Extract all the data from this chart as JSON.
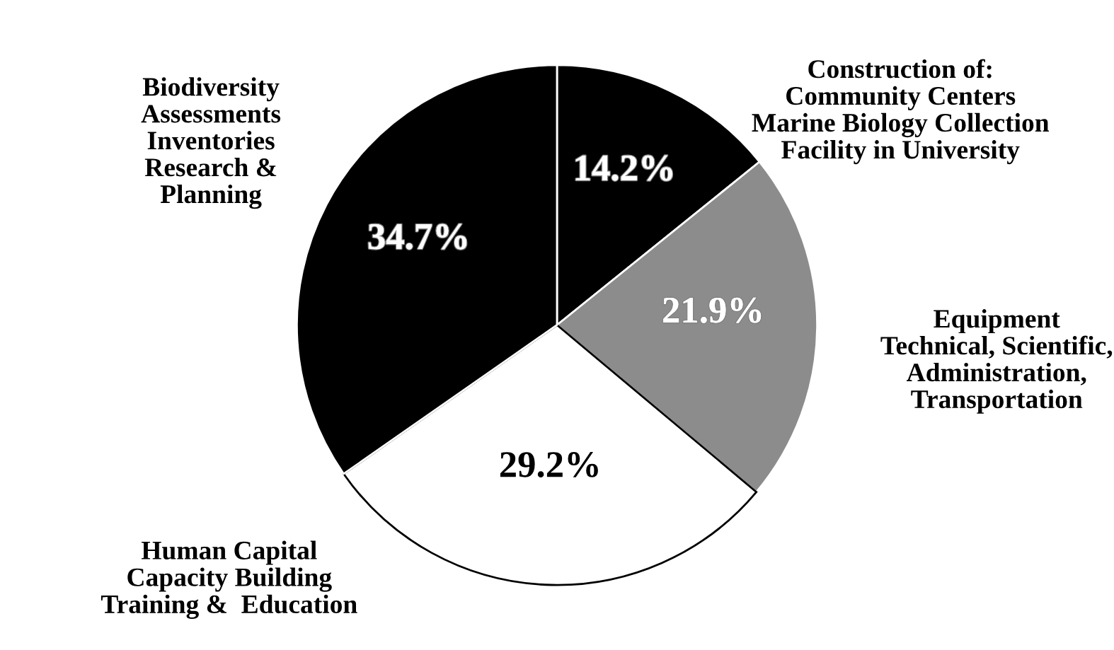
{
  "chart_data": {
    "type": "pie",
    "categories": [
      "Construction of:\nCommunity Centers\nMarine Biology Collection\nFacility in University",
      "Equipment\nTechnical, Scientific,\nAdministration,\nTransportation",
      "Human Capital\nCapacity Building\nTraining &  Education",
      "Biodiversity\nAssessments\nInventories\nResearch &\nPlanning"
    ],
    "values": [
      14.2,
      21.9,
      29.2,
      34.7
    ],
    "value_labels": [
      "14.2%",
      "21.9%",
      "29.2%",
      "34.7%"
    ],
    "colors": [
      "#000000",
      "#8c8c8c",
      "#ffffff",
      "#000000"
    ]
  }
}
